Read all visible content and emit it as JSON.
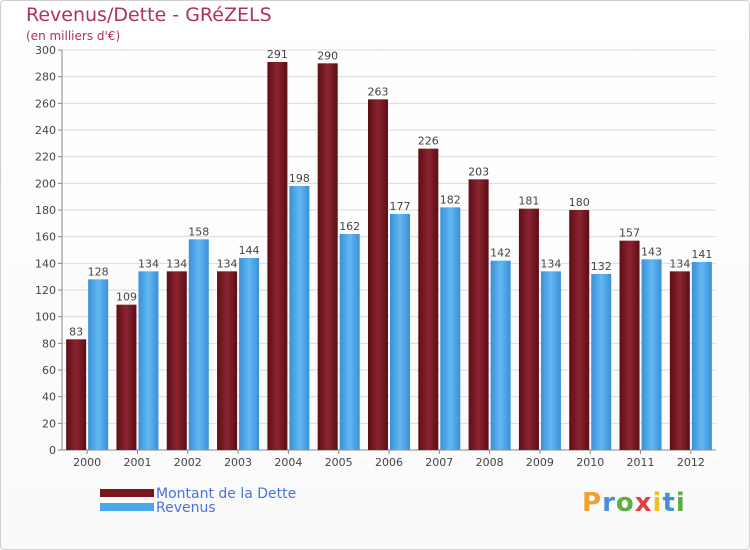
{
  "colors": {
    "dette": "#7a1520",
    "revenus": "#4aa8ea"
  },
  "chart_data": {
    "type": "bar",
    "title": "Revenus/Dette - GRéZELS",
    "subtitle": "(en milliers d'€)",
    "categories": [
      "2000",
      "2001",
      "2002",
      "2003",
      "2004",
      "2005",
      "2006",
      "2007",
      "2008",
      "2009",
      "2010",
      "2011",
      "2012"
    ],
    "series": [
      {
        "name": "Montant de la Dette",
        "values": [
          83,
          109,
          134,
          134,
          291,
          290,
          263,
          226,
          203,
          181,
          180,
          157,
          134
        ]
      },
      {
        "name": "Revenus",
        "values": [
          128,
          134,
          158,
          144,
          198,
          162,
          177,
          182,
          142,
          134,
          132,
          143,
          141
        ]
      }
    ],
    "yticks": [
      0,
      20,
      40,
      60,
      80,
      100,
      120,
      140,
      160,
      180,
      200,
      220,
      240,
      260,
      280,
      300
    ],
    "ylim": [
      0,
      300
    ],
    "grid": true,
    "legend": "bottom-left"
  },
  "logo": {
    "letters": [
      "P",
      "r",
      "o",
      "x",
      "i",
      "t",
      "i"
    ],
    "colors": [
      "#f0a030",
      "#4a90d0",
      "#5cb040",
      "#e04040",
      "#f0c020",
      "#4a90d0",
      "#5cb040"
    ]
  }
}
